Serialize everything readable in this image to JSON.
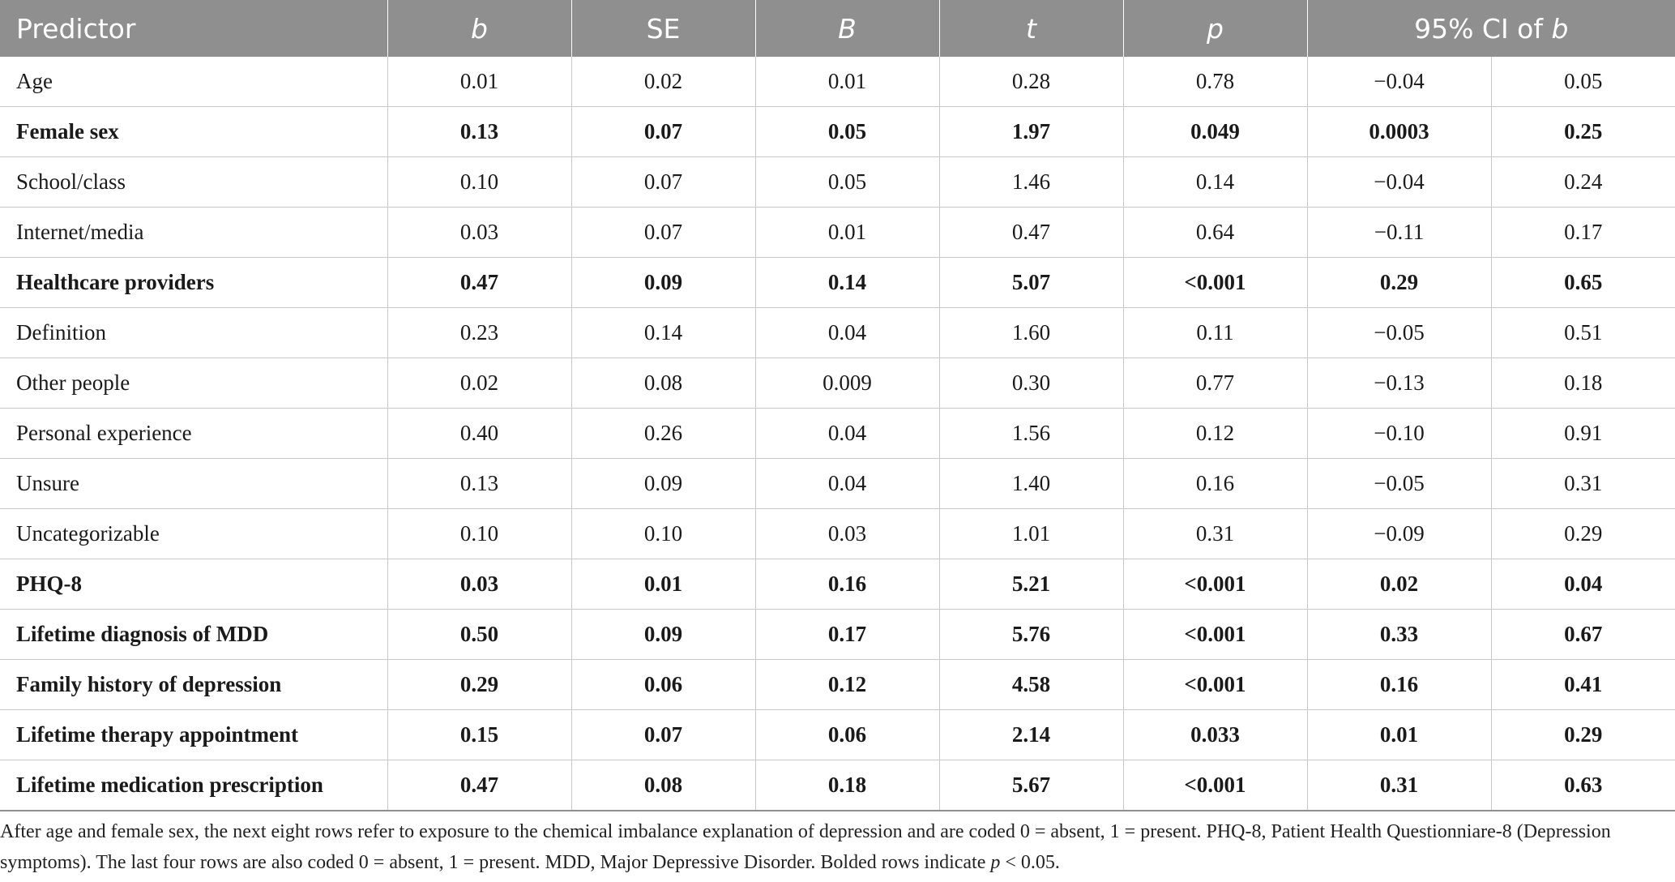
{
  "table": {
    "headers": {
      "predictor": "Predictor",
      "b": "b",
      "se": "SE",
      "beta": "B",
      "t": "t",
      "p": "p",
      "ci_prefix": "95% CI of ",
      "ci_var": "b"
    },
    "rows": [
      {
        "label": "Age",
        "b": "0.01",
        "se": "0.02",
        "beta": "0.01",
        "t": "0.28",
        "p": "0.78",
        "ci_low": "−0.04",
        "ci_high": "0.05",
        "bold": false
      },
      {
        "label": "Female sex",
        "b": "0.13",
        "se": "0.07",
        "beta": "0.05",
        "t": "1.97",
        "p": "0.049",
        "ci_low": "0.0003",
        "ci_high": "0.25",
        "bold": true
      },
      {
        "label": "School/class",
        "b": "0.10",
        "se": "0.07",
        "beta": "0.05",
        "t": "1.46",
        "p": "0.14",
        "ci_low": "−0.04",
        "ci_high": "0.24",
        "bold": false
      },
      {
        "label": "Internet/media",
        "b": "0.03",
        "se": "0.07",
        "beta": "0.01",
        "t": "0.47",
        "p": "0.64",
        "ci_low": "−0.11",
        "ci_high": "0.17",
        "bold": false
      },
      {
        "label": "Healthcare providers",
        "b": "0.47",
        "se": "0.09",
        "beta": "0.14",
        "t": "5.07",
        "p": "<0.001",
        "ci_low": "0.29",
        "ci_high": "0.65",
        "bold": true
      },
      {
        "label": "Definition",
        "b": "0.23",
        "se": "0.14",
        "beta": "0.04",
        "t": "1.60",
        "p": "0.11",
        "ci_low": "−0.05",
        "ci_high": "0.51",
        "bold": false
      },
      {
        "label": "Other people",
        "b": "0.02",
        "se": "0.08",
        "beta": "0.009",
        "t": "0.30",
        "p": "0.77",
        "ci_low": "−0.13",
        "ci_high": "0.18",
        "bold": false
      },
      {
        "label": "Personal experience",
        "b": "0.40",
        "se": "0.26",
        "beta": "0.04",
        "t": "1.56",
        "p": "0.12",
        "ci_low": "−0.10",
        "ci_high": "0.91",
        "bold": false
      },
      {
        "label": "Unsure",
        "b": "0.13",
        "se": "0.09",
        "beta": "0.04",
        "t": "1.40",
        "p": "0.16",
        "ci_low": "−0.05",
        "ci_high": "0.31",
        "bold": false
      },
      {
        "label": "Uncategorizable",
        "b": "0.10",
        "se": "0.10",
        "beta": "0.03",
        "t": "1.01",
        "p": "0.31",
        "ci_low": "−0.09",
        "ci_high": "0.29",
        "bold": false
      },
      {
        "label": "PHQ-8",
        "b": "0.03",
        "se": "0.01",
        "beta": "0.16",
        "t": "5.21",
        "p": "<0.001",
        "ci_low": "0.02",
        "ci_high": "0.04",
        "bold": true
      },
      {
        "label": "Lifetime diagnosis of MDD",
        "b": "0.50",
        "se": "0.09",
        "beta": "0.17",
        "t": "5.76",
        "p": "<0.001",
        "ci_low": "0.33",
        "ci_high": "0.67",
        "bold": true
      },
      {
        "label": "Family history of depression",
        "b": "0.29",
        "se": "0.06",
        "beta": "0.12",
        "t": "4.58",
        "p": "<0.001",
        "ci_low": "0.16",
        "ci_high": "0.41",
        "bold": true
      },
      {
        "label": "Lifetime therapy appointment",
        "b": "0.15",
        "se": "0.07",
        "beta": "0.06",
        "t": "2.14",
        "p": "0.033",
        "ci_low": "0.01",
        "ci_high": "0.29",
        "bold": true
      },
      {
        "label": "Lifetime medication prescription",
        "b": "0.47",
        "se": "0.08",
        "beta": "0.18",
        "t": "5.67",
        "p": "<0.001",
        "ci_low": "0.31",
        "ci_high": "0.63",
        "bold": true
      }
    ]
  },
  "footnote": {
    "main": "After age and female sex, the next eight rows refer to exposure to the chemical imbalance explanation of depression and are coded 0 = absent, 1 = present. PHQ-8, Patient Health Questionniare-8 (Depression symptoms). The last four rows are also coded 0 = absent, 1 = present. MDD, Major Depressive Disorder. Bolded rows indicate ",
    "p_var": "p",
    "tail": " < 0.05."
  },
  "colors": {
    "header_bg": "#8f8f8f",
    "header_text": "#ffffff",
    "grid_line": "#c9c9c9"
  }
}
